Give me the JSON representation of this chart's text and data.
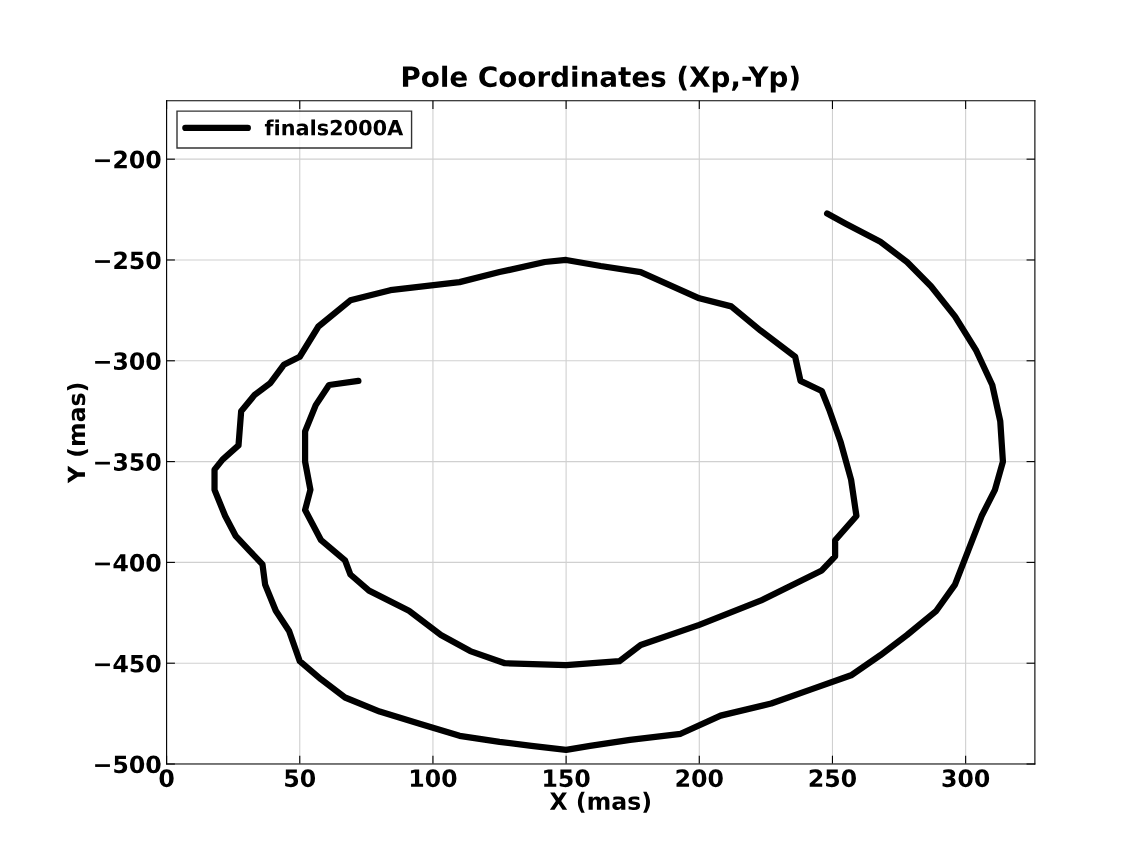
{
  "chart_data": {
    "type": "line",
    "title": "Pole Coordinates (Xp,-Yp)",
    "xlabel": "X (mas)",
    "ylabel": "Y (mas)",
    "xlim": [
      0,
      326
    ],
    "ylim": [
      -500,
      -171
    ],
    "xticks": [
      0,
      50,
      100,
      150,
      200,
      250,
      300
    ],
    "yticks": [
      -500,
      -450,
      -400,
      -350,
      -300,
      -250,
      -200
    ],
    "grid": true,
    "legend": "top left",
    "marker": "none",
    "line_style": "solid",
    "series": [
      {
        "name": "finals2000A",
        "color": "#000000",
        "x": [
          248,
          255,
          268,
          278,
          287,
          296,
          304,
          310,
          313,
          314,
          311,
          306,
          301,
          296,
          289,
          278,
          268,
          257,
          242,
          227,
          208,
          193,
          174,
          159,
          150,
          137,
          125,
          110,
          95,
          80,
          67,
          58,
          50,
          46,
          41,
          37,
          36,
          31,
          26,
          22,
          18,
          18,
          21,
          27,
          28,
          33,
          39,
          44,
          50,
          57,
          69,
          84,
          97,
          110,
          125,
          142,
          150,
          163,
          178,
          200,
          212,
          223,
          236,
          238,
          246,
          249,
          253,
          257,
          259,
          251,
          251,
          246,
          223,
          200,
          178,
          170,
          150,
          127,
          114,
          103,
          91,
          76,
          69,
          67,
          58,
          52,
          54,
          52,
          52,
          56,
          61,
          72
        ],
        "values": [
          -227,
          -232,
          -241,
          -251,
          -263,
          -278,
          -295,
          -312,
          -330,
          -350,
          -364,
          -377,
          -394,
          -411,
          -424,
          -436,
          -446,
          -456,
          -463,
          -470,
          -476,
          -485,
          -488,
          -491,
          -493,
          -491,
          -489,
          -486,
          -480,
          -474,
          -467,
          -458,
          -449,
          -434,
          -424,
          -411,
          -401,
          -394,
          -387,
          -377,
          -364,
          -354,
          -349,
          -342,
          -325,
          -317,
          -311,
          -302,
          -298,
          -283,
          -270,
          -265,
          -263,
          -261,
          -256,
          -251,
          -250,
          -253,
          -256,
          -269,
          -273,
          -285,
          -298,
          -310,
          -315,
          -325,
          -340,
          -359,
          -377,
          -389,
          -397,
          -404,
          -419,
          -431,
          -441,
          -449,
          -451,
          -450,
          -444,
          -436,
          -424,
          -414,
          -406,
          -399,
          -389,
          -374,
          -364,
          -350,
          -335,
          -322,
          -312,
          -310
        ]
      }
    ]
  }
}
